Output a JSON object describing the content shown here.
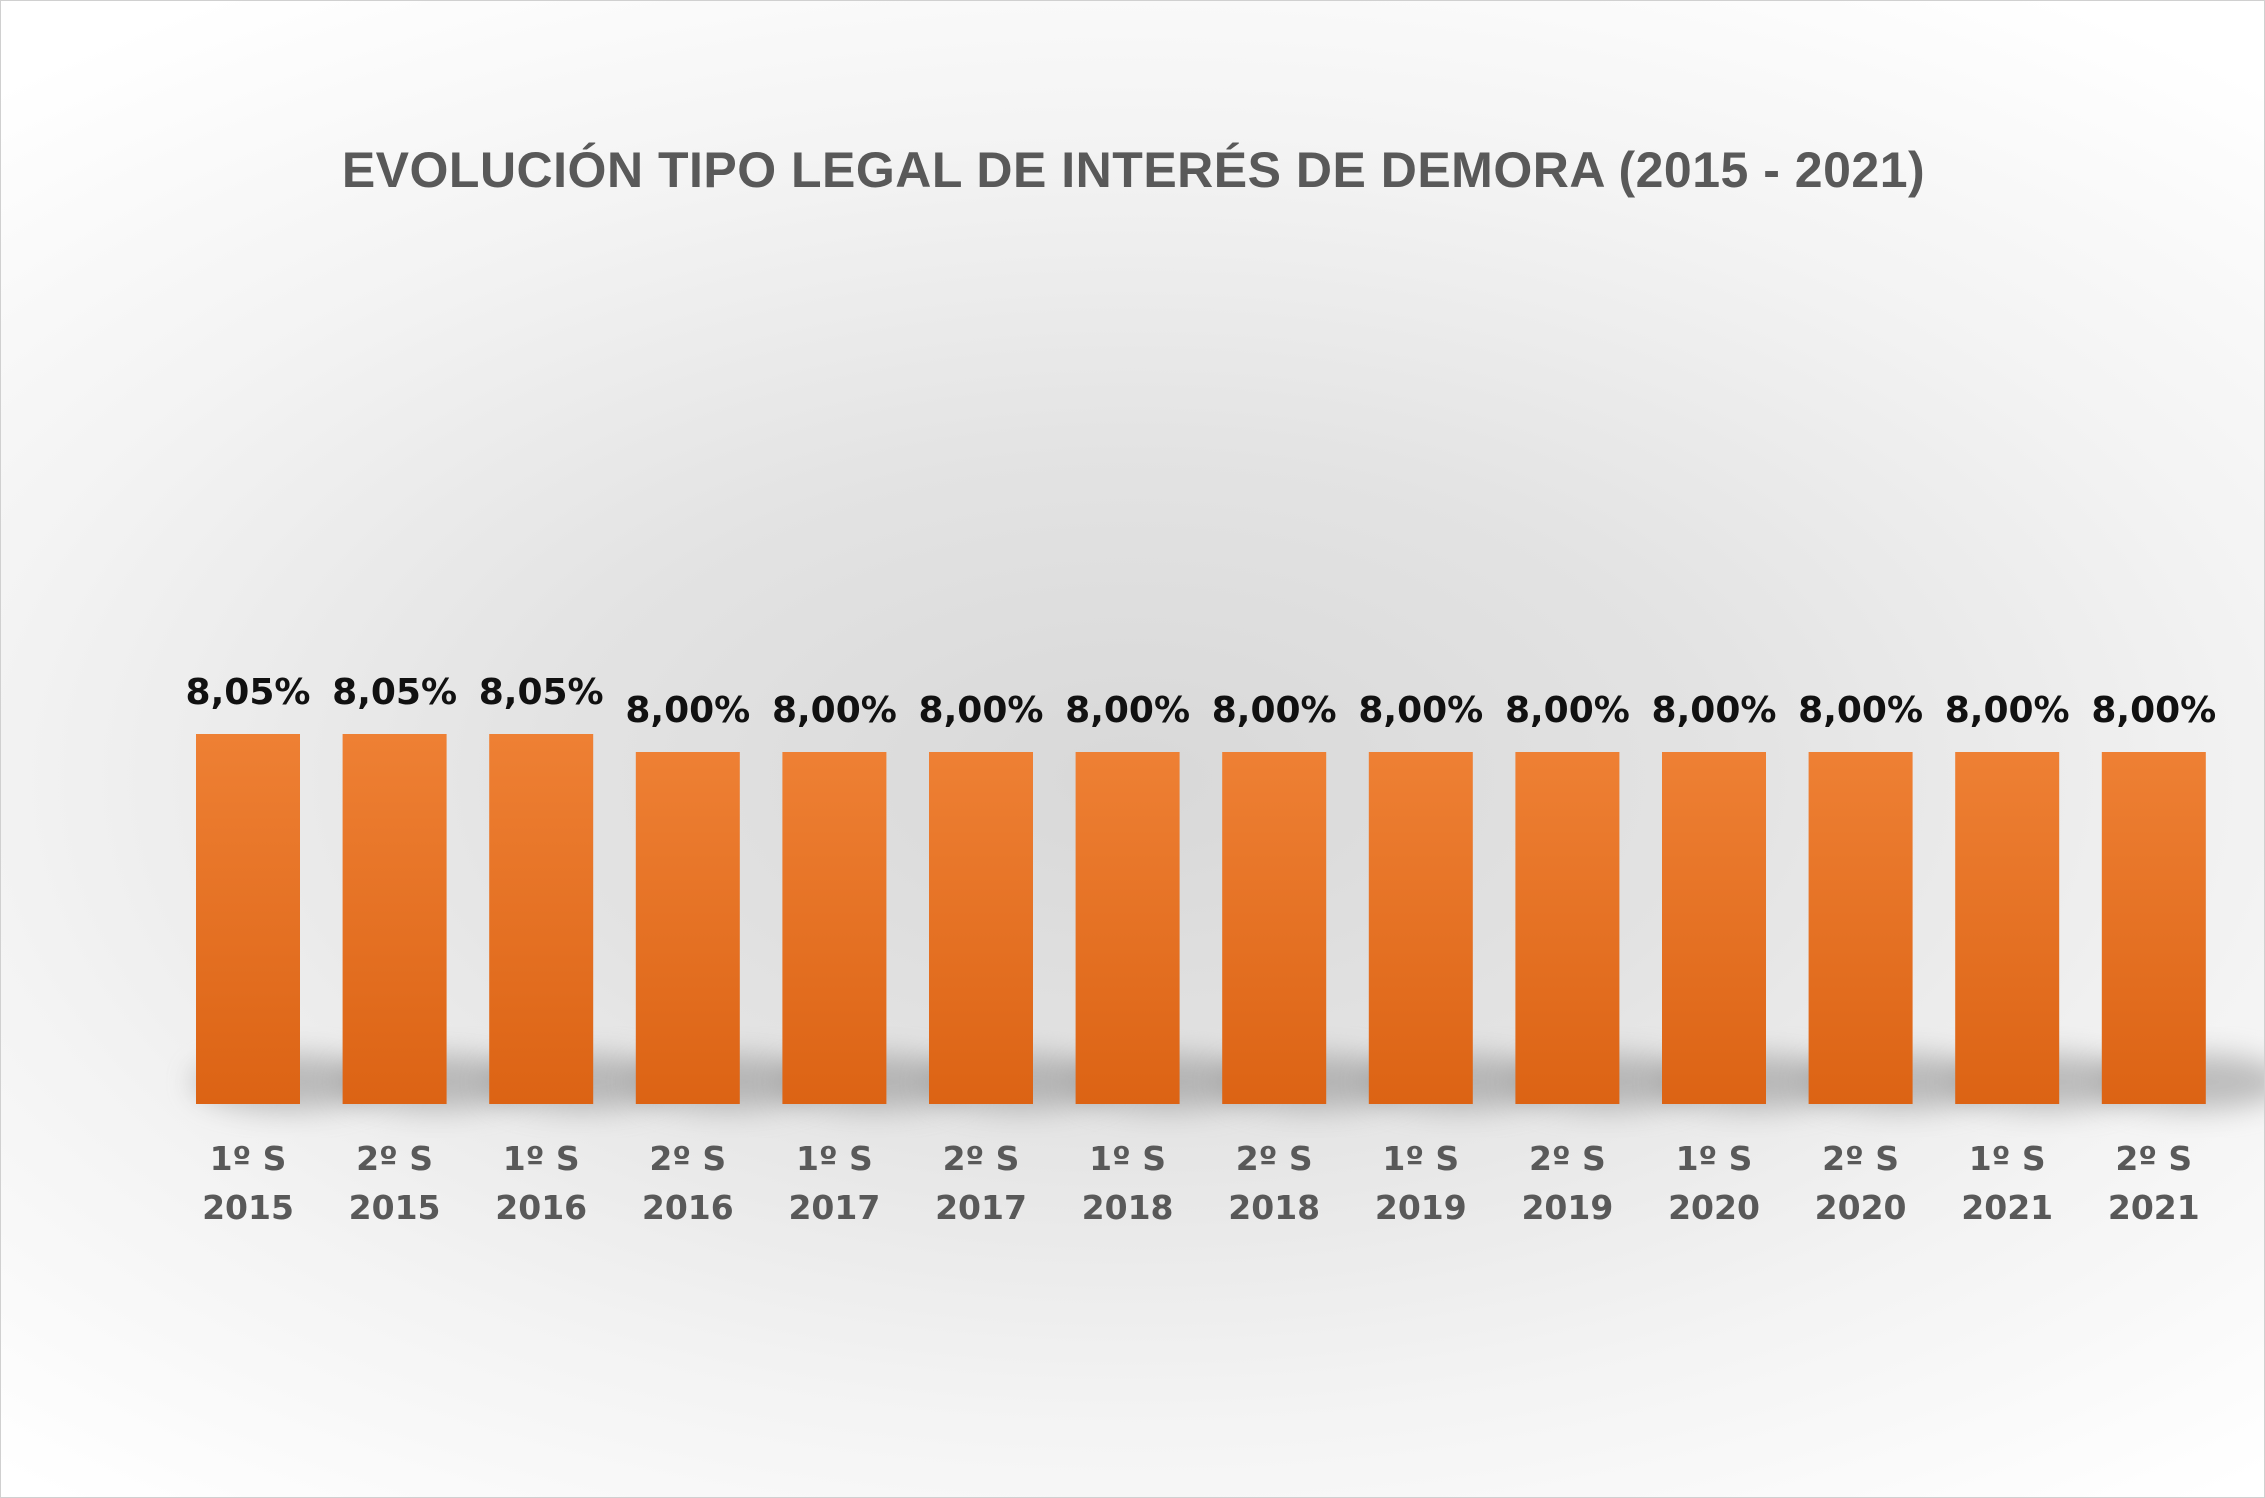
{
  "chart_data": {
    "type": "bar",
    "title": "EVOLUCIÓN TIPO LEGAL DE INTERÉS DE DEMORA (2015 - 2021)",
    "categories": [
      [
        "1º S",
        "2015"
      ],
      [
        "2º S",
        "2015"
      ],
      [
        "1º S",
        "2016"
      ],
      [
        "2º S",
        "2016"
      ],
      [
        "1º S",
        "2017"
      ],
      [
        "2º S",
        "2017"
      ],
      [
        "1º S",
        "2018"
      ],
      [
        "2º S",
        "2018"
      ],
      [
        "1º S",
        "2019"
      ],
      [
        "2º S",
        "2019"
      ],
      [
        "1º S",
        "2020"
      ],
      [
        "2º S",
        "2020"
      ],
      [
        "1º S",
        "2021"
      ],
      [
        "2º S",
        "2021"
      ]
    ],
    "values": [
      8.05,
      8.05,
      8.05,
      8.0,
      8.0,
      8.0,
      8.0,
      8.0,
      8.0,
      8.0,
      8.0,
      8.0,
      8.0,
      8.0
    ],
    "value_labels": [
      "8,05%",
      "8,05%",
      "8,05%",
      "8,00%",
      "8,00%",
      "8,00%",
      "8,00%",
      "8,00%",
      "8,00%",
      "8,00%",
      "8,00%",
      "8,00%",
      "8,00%",
      "8,00%"
    ],
    "xlabel": "",
    "ylabel": "",
    "grid": false,
    "legend": "none",
    "bar_color_top": "#ee8034",
    "bar_color_bottom": "#dc6314"
  }
}
